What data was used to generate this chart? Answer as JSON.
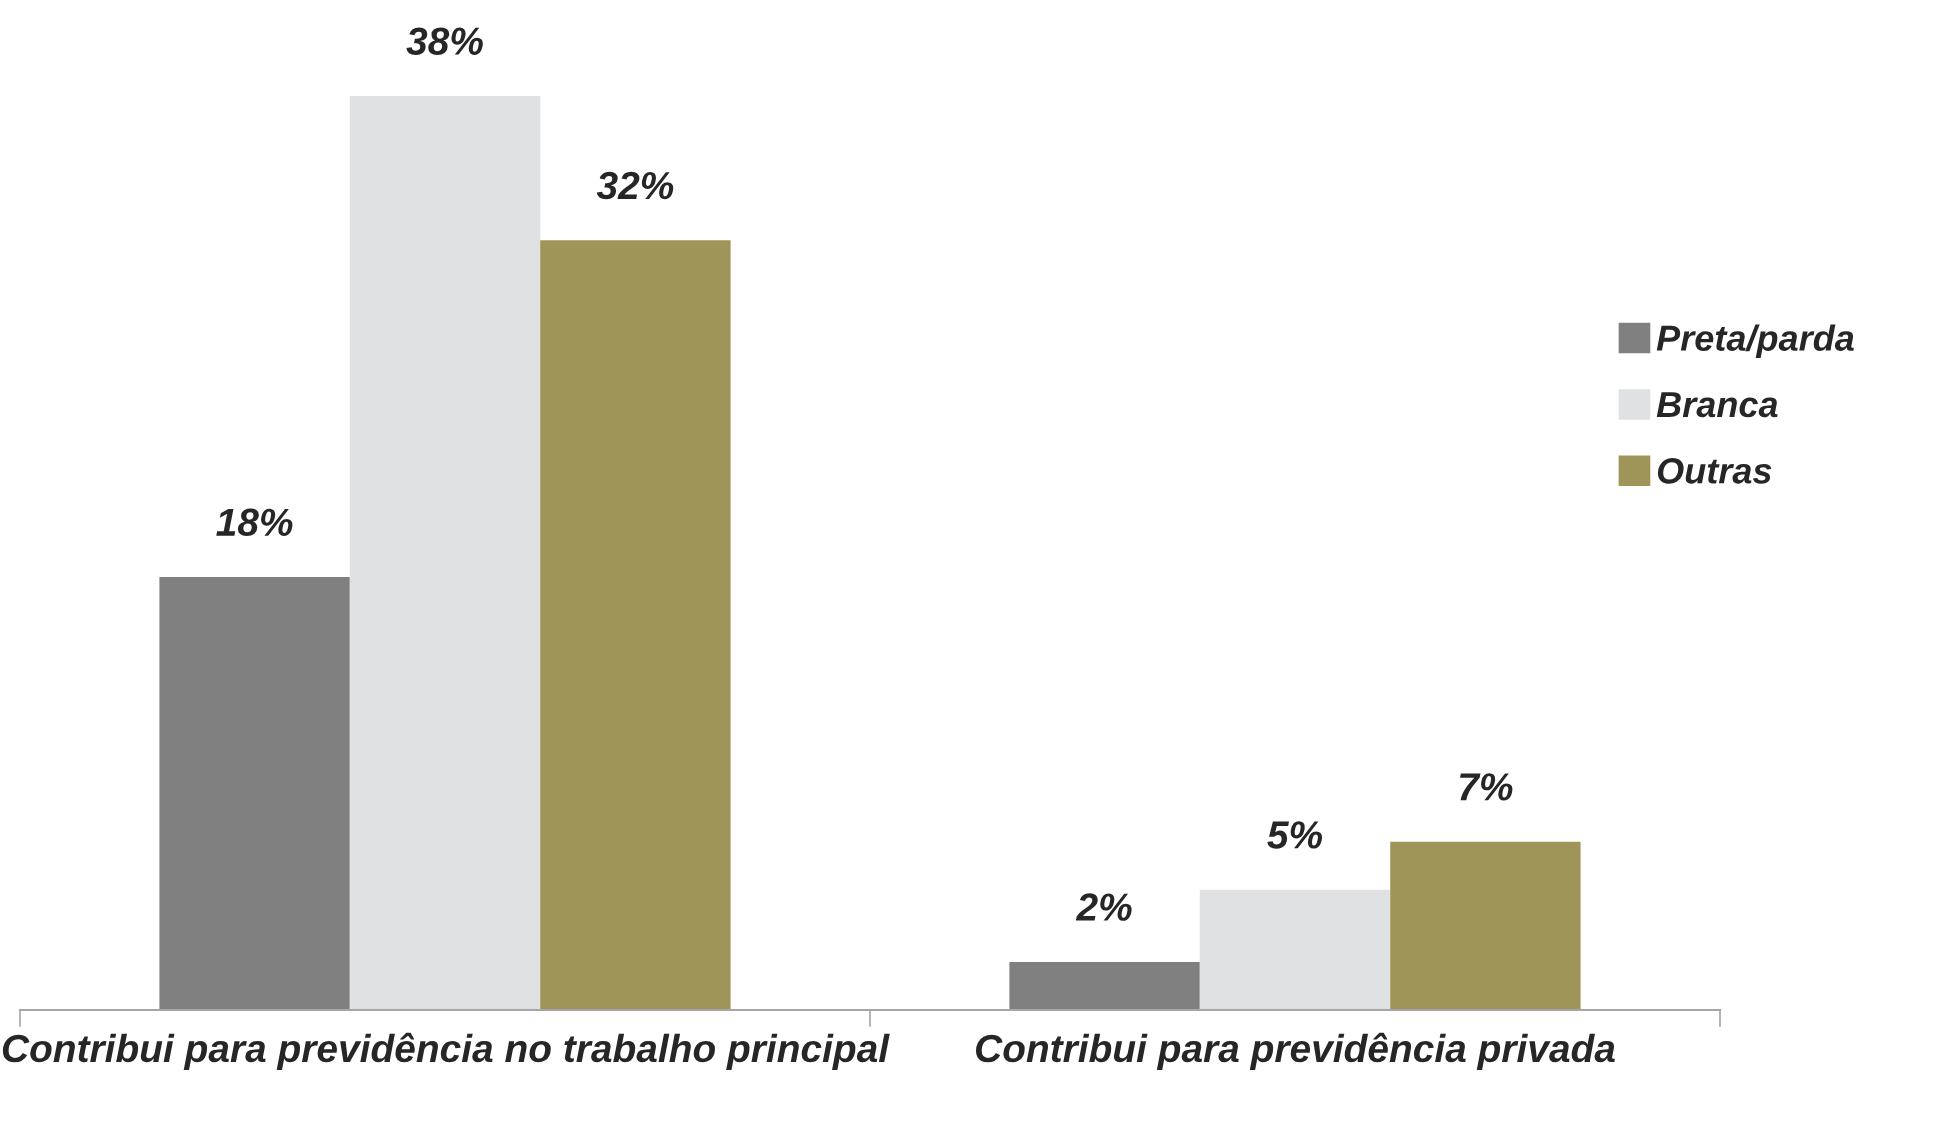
{
  "chart_data": {
    "type": "bar",
    "categories": [
      "Contribui para previdência no trabalho principal",
      "Contribui para previdência privada"
    ],
    "series": [
      {
        "name": "Preta/parda",
        "color": "#808080",
        "values": [
          18,
          2
        ],
        "value_labels": [
          "18%",
          "2%"
        ]
      },
      {
        "name": "Branca",
        "color": "#e0e1e3",
        "values": [
          38,
          5
        ],
        "value_labels": [
          "38%",
          "5%"
        ]
      },
      {
        "name": "Outras",
        "color": "#a09558",
        "values": [
          32,
          7
        ],
        "value_labels": [
          "32%",
          "7%"
        ]
      }
    ],
    "legend": "right",
    "grid": false
  }
}
